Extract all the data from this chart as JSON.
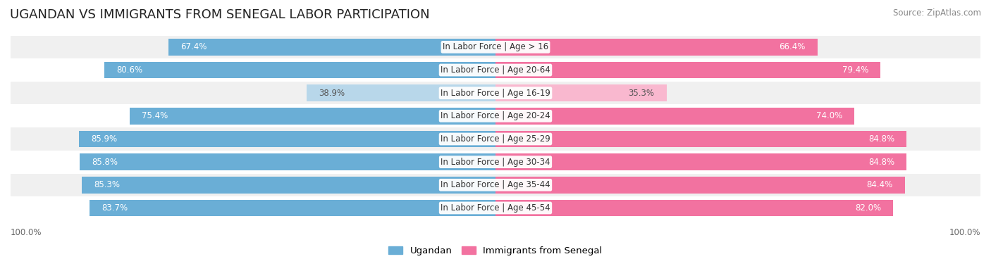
{
  "title": "UGANDAN VS IMMIGRANTS FROM SENEGAL LABOR PARTICIPATION",
  "source": "Source: ZipAtlas.com",
  "categories": [
    "In Labor Force | Age > 16",
    "In Labor Force | Age 20-64",
    "In Labor Force | Age 16-19",
    "In Labor Force | Age 20-24",
    "In Labor Force | Age 25-29",
    "In Labor Force | Age 30-34",
    "In Labor Force | Age 35-44",
    "In Labor Force | Age 45-54"
  ],
  "ugandan_values": [
    67.4,
    80.6,
    38.9,
    75.4,
    85.9,
    85.8,
    85.3,
    83.7
  ],
  "senegal_values": [
    66.4,
    79.4,
    35.3,
    74.0,
    84.8,
    84.8,
    84.4,
    82.0
  ],
  "ugandan_color_strong": "#6aaed6",
  "ugandan_color_light": "#b8d7ea",
  "senegal_color_strong": "#f272a0",
  "senegal_color_light": "#f9b8cf",
  "row_bg_odd": "#ffffff",
  "row_bg_even": "#f0f0f0",
  "label_font_size": 8.5,
  "value_font_size": 8.5,
  "title_font_size": 13,
  "threshold_strong": 60.0,
  "legend_ugandan": "Ugandan",
  "legend_senegal": "Immigrants from Senegal",
  "xlim": 100.0
}
